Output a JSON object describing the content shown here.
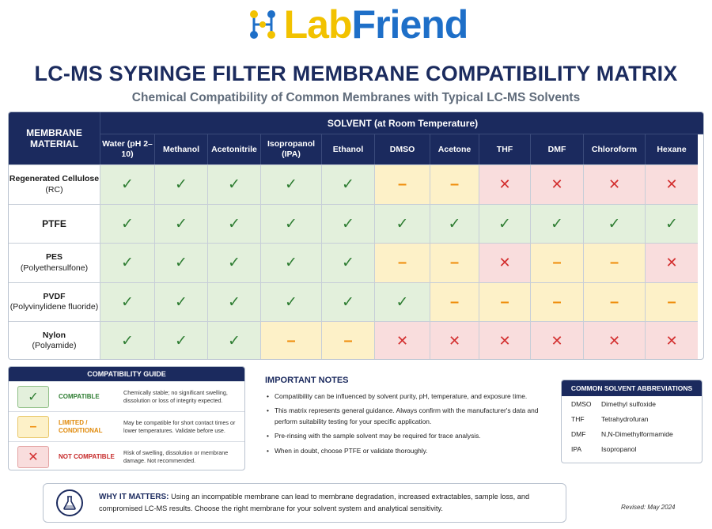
{
  "logo": {
    "part1": "Lab",
    "part2": "Friend"
  },
  "title": "LC-MS SYRINGE FILTER MEMBRANE COMPATIBILITY MATRIX",
  "subtitle": "Chemical Compatibility of Common Membranes with Typical LC-MS Solvents",
  "matrix": {
    "corner_label": "MEMBRANE MATERIAL",
    "solvent_header": "SOLVENT (at Room Temperature)",
    "columns": [
      "Water (pH 2–10)",
      "Methanol",
      "Acetonitrile",
      "Isopropanol (IPA)",
      "Ethanol",
      "DMSO",
      "Acetone",
      "THF",
      "DMF",
      "Chloroform",
      "Hexane"
    ],
    "rows": [
      {
        "name": "Regenerated Cellulose",
        "sub": "(RC)",
        "values": [
          "C",
          "C",
          "C",
          "C",
          "C",
          "L",
          "L",
          "N",
          "N",
          "N",
          "N"
        ]
      },
      {
        "name": "PTFE",
        "sub": "",
        "values": [
          "C",
          "C",
          "C",
          "C",
          "C",
          "C",
          "C",
          "C",
          "C",
          "C",
          "C"
        ]
      },
      {
        "name": "PES",
        "sub": "(Polyethersulfone)",
        "values": [
          "C",
          "C",
          "C",
          "C",
          "C",
          "L",
          "L",
          "N",
          "L",
          "L",
          "N"
        ]
      },
      {
        "name": "PVDF",
        "sub": "(Polyvinylidene fluoride)",
        "values": [
          "C",
          "C",
          "C",
          "C",
          "C",
          "C",
          "L",
          "L",
          "L",
          "L",
          "L"
        ]
      },
      {
        "name": "Nylon",
        "sub": "(Polyamide)",
        "values": [
          "C",
          "C",
          "C",
          "L",
          "L",
          "N",
          "N",
          "N",
          "N",
          "N",
          "N"
        ]
      }
    ],
    "symbols": {
      "C": "✓",
      "L": "–",
      "N": "✕"
    }
  },
  "guide": {
    "title": "COMPATIBILITY GUIDE",
    "items": [
      {
        "key": "C",
        "symbol": "✓",
        "label": "COMPATIBLE",
        "desc": "Chemically stable; no significant swelling, dissolution or loss of integrity expected."
      },
      {
        "key": "L",
        "symbol": "–",
        "label": "LIMITED / CONDITIONAL",
        "desc": "May be compatible for short contact times or lower temperatures. Validate before use."
      },
      {
        "key": "N",
        "symbol": "✕",
        "label": "NOT COMPATIBLE",
        "desc": "Risk of swelling, dissolution or membrane damage. Not recommended."
      }
    ]
  },
  "notes": {
    "title": "IMPORTANT NOTES",
    "items": [
      "Compatibility can be influenced by solvent purity, pH, temperature, and exposure time.",
      "This matrix represents general guidance. Always confirm with the manufacturer's data and perform suitability testing for your specific application.",
      "Pre-rinsing with the sample solvent may be required for trace analysis.",
      "When in doubt, choose PTFE or validate thoroughly."
    ]
  },
  "abbr": {
    "title": "COMMON SOLVENT ABBREVIATIONS",
    "items": [
      {
        "key": "DMSO",
        "value": "Dimethyl sulfoxide"
      },
      {
        "key": "THF",
        "value": "Tetrahydrofuran"
      },
      {
        "key": "DMF",
        "value": "N,N-Dimethylformamide"
      },
      {
        "key": "IPA",
        "value": "Isopropanol"
      }
    ]
  },
  "why": {
    "lead": "WHY IT MATTERS:",
    "text": "Using an incompatible membrane can lead to membrane degradation, increased extractables, sample loss, and compromised LC-MS results. Choose the right membrane for your solvent system and analytical sensitivity."
  },
  "revised": "Revised: May 2024",
  "colors": {
    "navy": "#1b2a5e",
    "compatible": "#2e7d32",
    "limited": "#ef8d0b",
    "not_compatible": "#d32f2f"
  }
}
